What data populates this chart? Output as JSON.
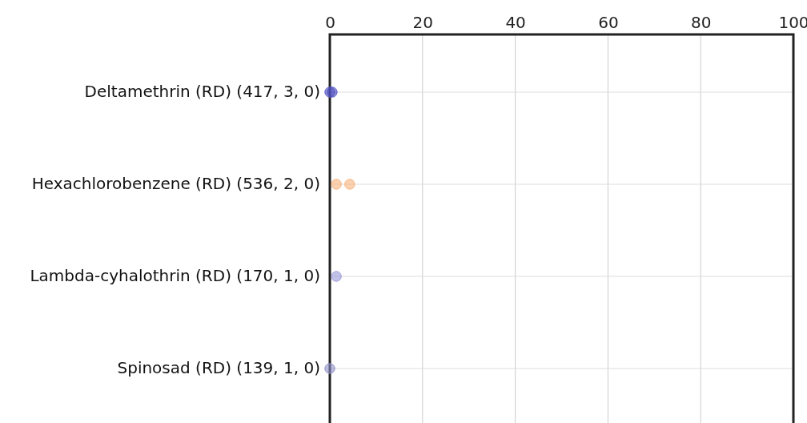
{
  "chart_data": {
    "type": "scatter",
    "orientation": "horizontal",
    "categories": [
      "Deltamethrin (RD) (417,  3,  0)",
      "Hexachlorobenzene (RD) (536,  2,  0)",
      "Lambda-cyhalothrin (RD) (170,  1,  0)",
      "Spinosad (RD) (139,  1,  0)"
    ],
    "series": [
      {
        "values": [
          0,
          1.4,
          1.4,
          0
        ],
        "colors": [
          "#5050c0",
          "#f8b27a",
          "#9a9ad8",
          "#8e8ec8"
        ]
      },
      {
        "values": [
          null,
          4.3,
          null,
          null
        ],
        "colors": [
          null,
          "#f8b27a",
          null,
          null
        ]
      },
      {
        "values": [
          0.5,
          null,
          null,
          null
        ],
        "colors": [
          "#5050c0",
          null,
          null,
          null
        ]
      }
    ],
    "xlim": [
      0,
      100
    ],
    "xticks": [
      0,
      20,
      40,
      60,
      80,
      100
    ],
    "grid": true,
    "marker": "circle"
  }
}
